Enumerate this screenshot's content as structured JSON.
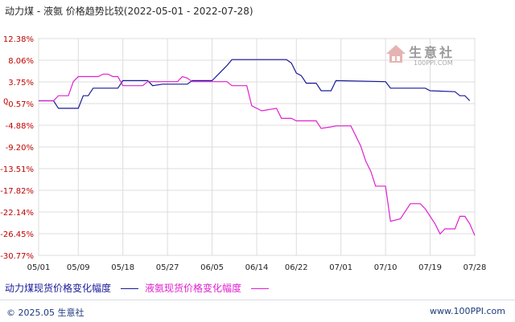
{
  "chart_data": {
    "type": "line",
    "title": "动力煤 - 液氨 价格趋势比较(2022-05-01 - 2022-07-28)",
    "y_ticks": [
      "12.38%",
      "8.06%",
      "3.75%",
      "-0.57%",
      "-4.88%",
      "-9.20%",
      "-13.51%",
      "-17.82%",
      "-22.14%",
      "-26.45%",
      "-30.77%"
    ],
    "ylim": [
      -30.77,
      12.38
    ],
    "zero_label": "0",
    "x_ticks": [
      "05/01",
      "05/09",
      "05/18",
      "05/27",
      "06/05",
      "06/14",
      "06/22",
      "07/01",
      "07/10",
      "07/19",
      "07/28"
    ],
    "x_days": [
      0,
      8,
      17,
      26,
      35,
      44,
      52,
      61,
      70,
      79,
      88
    ],
    "xlim": [
      0,
      88
    ],
    "grid": true,
    "legend_position": "bottom",
    "series": [
      {
        "name": "动力煤现货价格变化幅度",
        "color": "#1a1a9a",
        "points": [
          [
            0,
            0
          ],
          [
            3,
            0
          ],
          [
            4,
            -1.5
          ],
          [
            8,
            -1.5
          ],
          [
            9,
            1
          ],
          [
            10,
            1
          ],
          [
            11,
            2.5
          ],
          [
            16,
            2.5
          ],
          [
            17,
            4
          ],
          [
            22,
            4
          ],
          [
            23,
            3
          ],
          [
            25,
            3.3
          ],
          [
            30,
            3.3
          ],
          [
            31,
            4
          ],
          [
            35,
            4
          ],
          [
            36,
            5
          ],
          [
            38,
            7
          ],
          [
            39,
            8.2
          ],
          [
            50,
            8.2
          ],
          [
            51,
            7.5
          ],
          [
            52,
            5.5
          ],
          [
            53,
            5
          ],
          [
            54,
            3.5
          ],
          [
            56,
            3.5
          ],
          [
            57,
            2
          ],
          [
            59,
            2
          ],
          [
            60,
            4
          ],
          [
            70,
            3.8
          ],
          [
            71,
            2.5
          ],
          [
            78,
            2.5
          ],
          [
            79,
            2
          ],
          [
            84,
            1.8
          ],
          [
            85,
            1
          ],
          [
            86,
            1
          ],
          [
            87,
            0
          ]
        ]
      },
      {
        "name": "液氨现货价格变化幅度",
        "color": "#e020d0",
        "points": [
          [
            0,
            0
          ],
          [
            3,
            0
          ],
          [
            4,
            1
          ],
          [
            6,
            1
          ],
          [
            7,
            3.8
          ],
          [
            8,
            4.8
          ],
          [
            12,
            4.8
          ],
          [
            13,
            5.3
          ],
          [
            14,
            5.3
          ],
          [
            15,
            4.8
          ],
          [
            16,
            4.8
          ],
          [
            17,
            3
          ],
          [
            21,
            3
          ],
          [
            22,
            3.8
          ],
          [
            28,
            3.8
          ],
          [
            29,
            4.8
          ],
          [
            30,
            4.5
          ],
          [
            31,
            3.8
          ],
          [
            38,
            3.8
          ],
          [
            39,
            3
          ],
          [
            42,
            3
          ],
          [
            43,
            -1
          ],
          [
            44,
            -1.5
          ],
          [
            45,
            -2
          ],
          [
            48,
            -1.5
          ],
          [
            49,
            -3.5
          ],
          [
            51,
            -3.5
          ],
          [
            52,
            -4
          ],
          [
            56,
            -4
          ],
          [
            57,
            -5.5
          ],
          [
            59,
            -5.2
          ],
          [
            60,
            -5
          ],
          [
            63,
            -5
          ],
          [
            64,
            -7
          ],
          [
            65,
            -9
          ],
          [
            66,
            -12
          ],
          [
            67,
            -14
          ],
          [
            68,
            -17
          ],
          [
            70,
            -17
          ],
          [
            71,
            -24
          ],
          [
            73,
            -23.5
          ],
          [
            74,
            -22
          ],
          [
            75,
            -20.5
          ],
          [
            77,
            -20.5
          ],
          [
            78,
            -21.5
          ],
          [
            80,
            -24.5
          ],
          [
            81,
            -26.5
          ],
          [
            82,
            -25.5
          ],
          [
            84,
            -25.5
          ],
          [
            85,
            -23
          ],
          [
            86,
            -23
          ],
          [
            87,
            -24.5
          ],
          [
            88,
            -26.8
          ]
        ]
      }
    ]
  },
  "legend": {
    "coal_label": "动力煤现货价格变化幅度",
    "ammonia_label": "液氨现货价格变化幅度"
  },
  "watermark": {
    "text": "生意社",
    "sub": "100PPI.COM"
  },
  "footer": {
    "copyright": "© 2025.05 生意社",
    "site": "www.100PPI.com"
  }
}
